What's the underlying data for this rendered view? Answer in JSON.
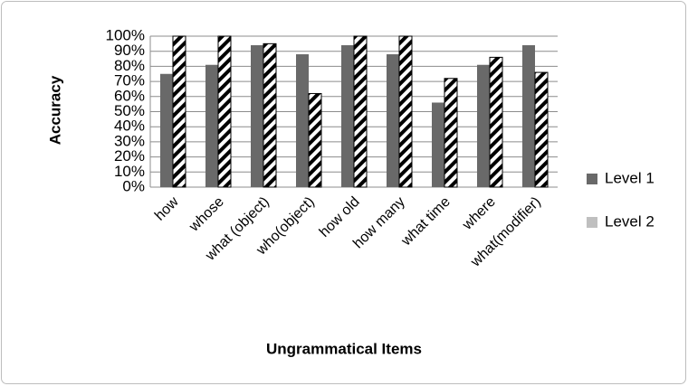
{
  "chart_data": {
    "type": "bar",
    "categories": [
      "how",
      "whose",
      "what (object)",
      "who(object)",
      "how old",
      "how many",
      "what time",
      "where",
      "what(modifier)"
    ],
    "series": [
      {
        "name": "Level 1",
        "color": "#696969",
        "values": [
          75,
          81,
          94,
          88,
          94,
          88,
          56,
          81,
          94
        ]
      },
      {
        "name": "Level 2",
        "color": "#bfbfbf",
        "hatch": true,
        "values": [
          100,
          100,
          95,
          62,
          100,
          100,
          72,
          86,
          76
        ]
      }
    ],
    "ylim": [
      0,
      100
    ],
    "yticks": [
      {
        "value": 0,
        "label": "0%"
      },
      {
        "value": 10,
        "label": "10%"
      },
      {
        "value": 20,
        "label": "20%"
      },
      {
        "value": 30,
        "label": "30%"
      },
      {
        "value": 40,
        "label": "40%"
      },
      {
        "value": 50,
        "label": "50%"
      },
      {
        "value": 60,
        "label": "60%"
      },
      {
        "value": 70,
        "label": "70%"
      },
      {
        "value": 80,
        "label": "80%"
      },
      {
        "value": 90,
        "label": "90%"
      },
      {
        "value": 100,
        "label": "100%"
      }
    ],
    "grid": true,
    "xlabel": "Ungrammatical Items",
    "ylabel": "Accuracy",
    "legend": "right"
  }
}
